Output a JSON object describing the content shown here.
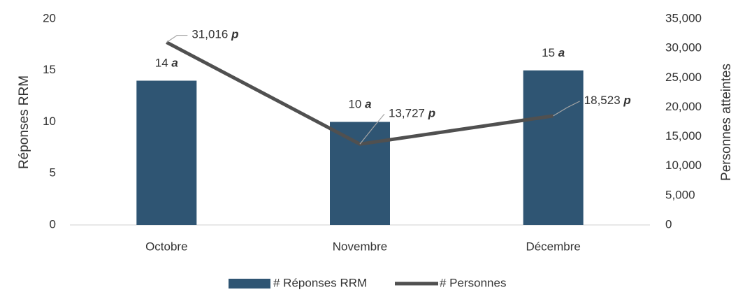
{
  "chart_data": {
    "type": "combo",
    "categories": [
      "Octobre",
      "Novembre",
      "Décembre"
    ],
    "series": [
      {
        "name": "# Réponses RRM",
        "type": "bar",
        "color": "#2f5573",
        "values": [
          14,
          10,
          15
        ],
        "value_labels": [
          "14 a",
          "10 a",
          "15 a"
        ]
      },
      {
        "name": "# Personnes",
        "type": "line",
        "axis": "y2",
        "color": "#505050",
        "values": [
          31016,
          13727,
          18523
        ],
        "value_labels": [
          "31,016 p",
          "13,727 p",
          "18,523 p"
        ]
      }
    ],
    "ylabel": "Réponses RRM",
    "y2label": "Personnes atteintes",
    "ylim": [
      0,
      20
    ],
    "yticks": [
      0,
      5,
      10,
      15,
      20
    ],
    "y2lim": [
      0,
      35000
    ],
    "y2ticks": [
      0,
      {
        "value": 5000,
        "label": "5,000"
      },
      {
        "value": 10000,
        "label": "10,000"
      },
      {
        "value": 15000,
        "label": "15,000"
      },
      {
        "value": 20000,
        "label": "20,000"
      },
      {
        "value": 25000,
        "label": "25,000"
      },
      {
        "value": 30000,
        "label": "30,000"
      },
      {
        "value": 35000,
        "label": "35,000"
      }
    ],
    "legend": "bottom"
  }
}
